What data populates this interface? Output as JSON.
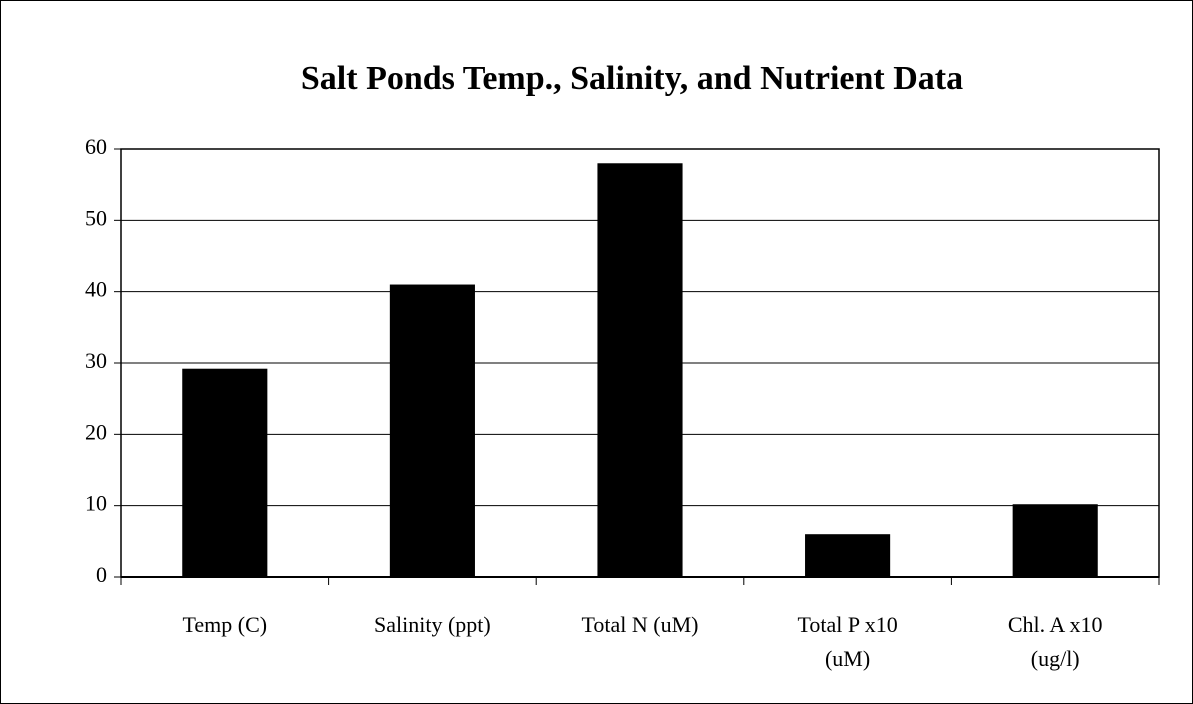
{
  "chart_data": {
    "type": "bar",
    "title": "Salt Ponds Temp., Salinity, and Nutrient Data",
    "categories": [
      "Temp (C)",
      "Salinity (ppt)",
      "Total N (uM)",
      "Total P x10\n(uM)",
      "Chl. A x10\n(ug/l)"
    ],
    "values": [
      29.2,
      41,
      58,
      6,
      10.2
    ],
    "color": "#000000",
    "ylim": [
      0,
      60
    ],
    "yticks": [
      0,
      10,
      20,
      30,
      40,
      50,
      60
    ],
    "grid": true
  }
}
